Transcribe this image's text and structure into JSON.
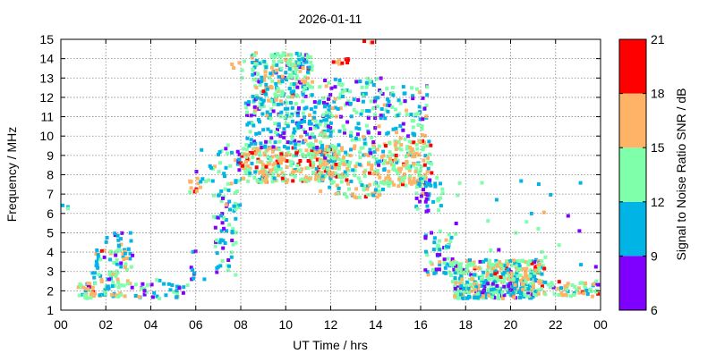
{
  "chart_data": {
    "type": "heatmap",
    "title": "2026-01-11",
    "xlabel": "UT Time / hrs",
    "ylabel": "Frequency / MHz",
    "xlim": [
      0,
      24
    ],
    "ylim": [
      1,
      15
    ],
    "x_ticks": [
      "00",
      "02",
      "04",
      "06",
      "08",
      "10",
      "12",
      "14",
      "16",
      "18",
      "20",
      "22",
      "00"
    ],
    "y_ticks": [
      "1",
      "2",
      "3",
      "4",
      "5",
      "6",
      "7",
      "8",
      "9",
      "10",
      "11",
      "12",
      "13",
      "14",
      "15"
    ],
    "grid": true,
    "colorbar": {
      "label": "Signal to Noise Ratio SNR / dB",
      "ticks": [
        "6",
        "9",
        "12",
        "15",
        "18",
        "21"
      ],
      "bins": [
        {
          "min": 6,
          "max": 9,
          "color": "#7f00ff"
        },
        {
          "min": 9,
          "max": 12,
          "color": "#00b4e6"
        },
        {
          "min": 12,
          "max": 15,
          "color": "#80ffaa"
        },
        {
          "min": 15,
          "max": 18,
          "color": "#ffb366"
        },
        {
          "min": 18,
          "max": 21,
          "color": "#ff0000"
        }
      ]
    },
    "regions": [
      {
        "t": [
          0.0,
          0.4
        ],
        "f": [
          6.1,
          6.6
        ],
        "n": 3,
        "snr": 10
      },
      {
        "t": [
          0.7,
          1.5
        ],
        "f": [
          1.6,
          2.4
        ],
        "n": 30,
        "snr": 14
      },
      {
        "t": [
          1.4,
          3.2
        ],
        "f": [
          1.7,
          4.2
        ],
        "n": 90,
        "snr": 13
      },
      {
        "t": [
          2.0,
          3.2
        ],
        "f": [
          3.5,
          5.0
        ],
        "n": 25,
        "snr": 11
      },
      {
        "t": [
          3.2,
          5.5
        ],
        "f": [
          1.6,
          2.6
        ],
        "n": 35,
        "snr": 10
      },
      {
        "t": [
          5.6,
          6.5
        ],
        "f": [
          2.2,
          4.2
        ],
        "n": 10,
        "snr": 10
      },
      {
        "t": [
          5.7,
          6.3
        ],
        "f": [
          7.0,
          8.0
        ],
        "n": 12,
        "snr": 17
      },
      {
        "t": [
          6.0,
          7.0
        ],
        "f": [
          7.6,
          9.4
        ],
        "n": 12,
        "snr": 11
      },
      {
        "t": [
          6.8,
          7.8
        ],
        "f": [
          2.8,
          7.0
        ],
        "n": 55,
        "snr": 11
      },
      {
        "t": [
          7.0,
          8.0
        ],
        "f": [
          6.0,
          9.6
        ],
        "n": 40,
        "snr": 12
      },
      {
        "t": [
          7.5,
          8.3
        ],
        "f": [
          12.4,
          14.0
        ],
        "n": 6,
        "snr": 16
      },
      {
        "t": [
          8.0,
          12.5
        ],
        "f": [
          7.6,
          9.4
        ],
        "n": 330,
        "snr": 15
      },
      {
        "t": [
          8.2,
          12.0
        ],
        "f": [
          9.4,
          11.8
        ],
        "n": 200,
        "snr": 11
      },
      {
        "t": [
          8.5,
          11.2
        ],
        "f": [
          11.8,
          14.3
        ],
        "n": 230,
        "snr": 13
      },
      {
        "t": [
          11.5,
          14.5
        ],
        "f": [
          6.8,
          9.6
        ],
        "n": 170,
        "snr": 14
      },
      {
        "t": [
          11.5,
          14.5
        ],
        "f": [
          9.6,
          13.0
        ],
        "n": 130,
        "snr": 11
      },
      {
        "t": [
          11.8,
          12.8
        ],
        "f": [
          13.7,
          14.0
        ],
        "n": 10,
        "snr": 19
      },
      {
        "t": [
          13.4,
          13.9
        ],
        "f": [
          14.8,
          15.0
        ],
        "n": 3,
        "snr": 20
      },
      {
        "t": [
          14.5,
          16.5
        ],
        "f": [
          7.4,
          9.8
        ],
        "n": 150,
        "snr": 15
      },
      {
        "t": [
          14.5,
          16.3
        ],
        "f": [
          9.8,
          12.6
        ],
        "n": 70,
        "snr": 11
      },
      {
        "t": [
          15.8,
          17.0
        ],
        "f": [
          6.0,
          8.0
        ],
        "n": 45,
        "snr": 10
      },
      {
        "t": [
          16.2,
          17.5
        ],
        "f": [
          2.8,
          5.2
        ],
        "n": 55,
        "snr": 11
      },
      {
        "t": [
          17.3,
          21.5
        ],
        "f": [
          2.4,
          3.6
        ],
        "n": 260,
        "snr": 14
      },
      {
        "t": [
          17.5,
          21.0
        ],
        "f": [
          1.6,
          2.4
        ],
        "n": 230,
        "snr": 12
      },
      {
        "t": [
          21.0,
          23.9
        ],
        "f": [
          1.7,
          2.5
        ],
        "n": 70,
        "snr": 14
      },
      {
        "t": [
          17.5,
          23.9
        ],
        "f": [
          3.0,
          8.0
        ],
        "n": 25,
        "snr": 10
      }
    ]
  }
}
